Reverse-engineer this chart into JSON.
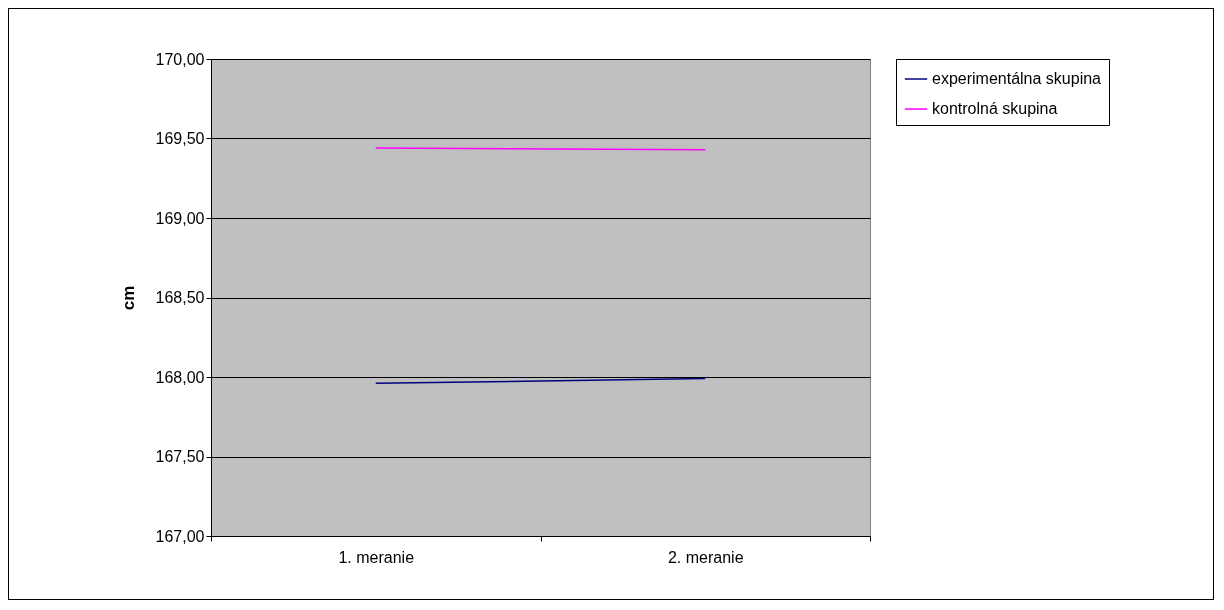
{
  "chart_data": {
    "type": "line",
    "ylabel": "cm",
    "categories": [
      "1. meranie",
      "2. meranie"
    ],
    "series": [
      {
        "name": "experimentálna skupina",
        "color": "#000080",
        "values": [
          167.96,
          167.99
        ]
      },
      {
        "name": "kontrolná skupina",
        "color": "#ff00ff",
        "values": [
          169.44,
          169.43
        ]
      }
    ],
    "ylim": [
      167,
      170
    ],
    "yticks": [
      {
        "value": 167,
        "label": "167,00"
      },
      {
        "value": 167.5,
        "label": "167,50"
      },
      {
        "value": 168,
        "label": "168,00"
      },
      {
        "value": 168.5,
        "label": "168,50"
      },
      {
        "value": 169,
        "label": "169,00"
      },
      {
        "value": 169.5,
        "label": "169,50"
      },
      {
        "value": 170,
        "label": "170,00"
      }
    ],
    "grid": "y",
    "legend": "right",
    "marker": "none",
    "line_style": "solid"
  }
}
